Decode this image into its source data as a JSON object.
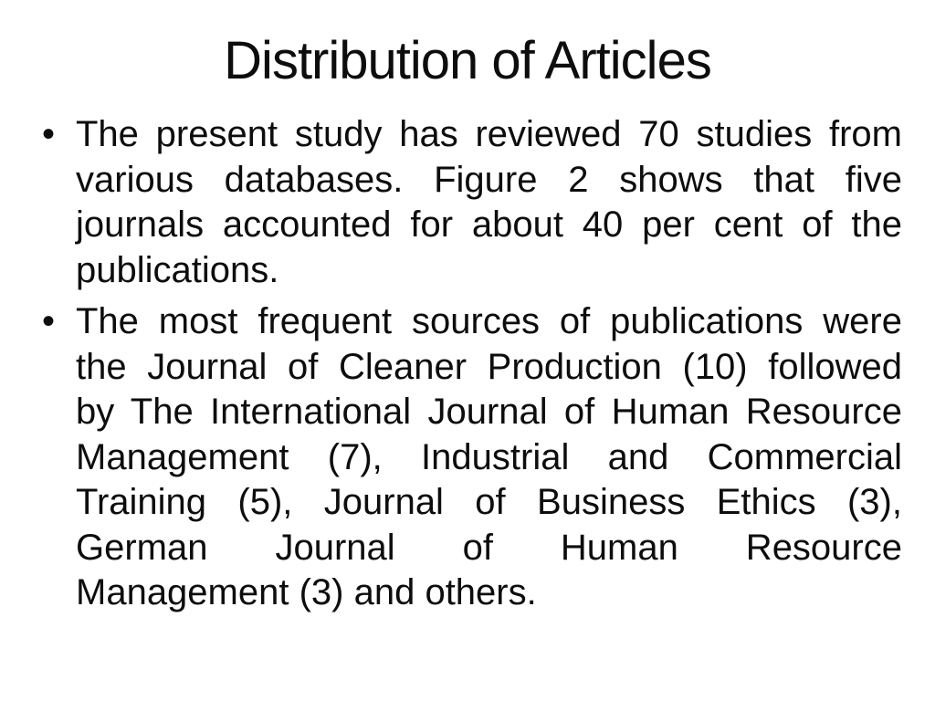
{
  "slide": {
    "title": "Distribution of Articles",
    "bullet_glyph": "•",
    "bullets": [
      {
        "lines": [
          "The present study has reviewed 70 studies from",
          "various databases. Figure 2 shows that five",
          "journals accounted for about 40 per cent of the",
          "publications."
        ]
      },
      {
        "lines": [
          "The most frequent sources of publications were",
          "the Journal of Cleaner Production (10) followed",
          "by The International Journal of Human Resource",
          "Management (7), Industrial and Commercial",
          "Training (5), Journal of Business Ethics (3),",
          "German Journal of Human Resource",
          "Management (3) and others."
        ]
      }
    ],
    "colors": {
      "background": "#ffffff",
      "text": "#0d0d0d"
    }
  }
}
